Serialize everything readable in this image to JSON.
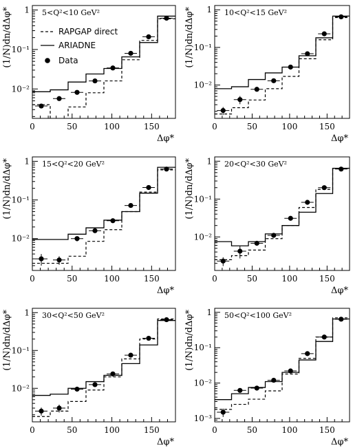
{
  "chart_data": [
    {
      "type": "line",
      "panel_label": "5<Q²<10 GeV²",
      "xlabel": "Δφ*",
      "ylabel": "(1/N)dn/dΔφ*",
      "yscale": "log",
      "xlim": [
        0,
        180
      ],
      "ylim": [
        0.0018,
        1.3
      ],
      "x_ticks": [
        0,
        50,
        100,
        150
      ],
      "y_ticks": [
        {
          "value": 0.01,
          "label": "10⁻²"
        },
        {
          "value": 0.1,
          "label": "10⁻¹"
        },
        {
          "value": 1,
          "label": "1"
        }
      ],
      "bin_edges": [
        0,
        22.5,
        45,
        67.5,
        90,
        112.5,
        135,
        157.5,
        180
      ],
      "legend": {
        "position": "top-left",
        "entries": [
          {
            "series": "rapgap",
            "label": "RAPGAP direct"
          },
          {
            "series": "ariadne",
            "label": "ARIADNE"
          },
          {
            "series": "data",
            "label": "Data"
          }
        ]
      },
      "series": [
        {
          "id": "rapgap",
          "style": "dashed-histogram",
          "values": [
            0.004,
            0.0015,
            0.0035,
            0.008,
            0.016,
            0.055,
            0.17,
            0.6
          ]
        },
        {
          "id": "ariadne",
          "style": "solid-histogram",
          "values": [
            0.0085,
            0.0095,
            0.015,
            0.024,
            0.033,
            0.065,
            0.15,
            0.7
          ]
        },
        {
          "id": "data",
          "style": "points",
          "x": [
            11.25,
            33.75,
            56.25,
            78.75,
            101.25,
            123.75,
            146.25,
            168.75
          ],
          "y": [
            0.0037,
            0.0057,
            0.0082,
            0.016,
            0.034,
            0.08,
            0.21,
            0.62
          ],
          "err": [
            0.0004,
            0.0005,
            0.0006,
            0.001,
            0.002,
            0.004,
            0.01,
            0.03
          ]
        }
      ]
    },
    {
      "type": "line",
      "panel_label": "10<Q²<15 GeV²",
      "xlabel": "Δφ*",
      "ylabel": "(1/N)dn/dΔφ*",
      "yscale": "log",
      "xlim": [
        0,
        180
      ],
      "ylim": [
        0.0013,
        1.3
      ],
      "x_ticks": [
        0,
        50,
        100,
        150
      ],
      "y_ticks": [
        {
          "value": 0.01,
          "label": "10⁻²"
        },
        {
          "value": 0.1,
          "label": "10⁻¹"
        },
        {
          "value": 1,
          "label": "1"
        }
      ],
      "bin_edges": [
        0,
        22.5,
        45,
        67.5,
        90,
        112.5,
        135,
        157.5,
        180
      ],
      "series": [
        {
          "id": "rapgap",
          "style": "dashed-histogram",
          "values": [
            0.0017,
            0.0025,
            0.004,
            0.008,
            0.017,
            0.05,
            0.16,
            0.62
          ]
        },
        {
          "id": "ariadne",
          "style": "solid-histogram",
          "values": [
            0.008,
            0.009,
            0.014,
            0.021,
            0.03,
            0.06,
            0.18,
            0.68
          ]
        },
        {
          "id": "data",
          "style": "points",
          "x": [
            11.25,
            33.75,
            56.25,
            78.75,
            101.25,
            123.75,
            146.25,
            168.75
          ],
          "y": [
            0.0021,
            0.0041,
            0.0077,
            0.013,
            0.03,
            0.068,
            0.23,
            0.65
          ],
          "err": [
            0.0005,
            0.001,
            0.0006,
            0.001,
            0.002,
            0.004,
            0.01,
            0.03
          ]
        }
      ]
    },
    {
      "type": "line",
      "panel_label": "15<Q²<20 GeV²",
      "xlabel": "Δφ*",
      "ylabel": "(1/N)dn/dΔφ*",
      "yscale": "log",
      "xlim": [
        0,
        180
      ],
      "ylim": [
        0.0015,
        1.3
      ],
      "x_ticks": [
        0,
        50,
        100,
        150
      ],
      "y_ticks": [
        {
          "value": 0.01,
          "label": "10⁻²"
        },
        {
          "value": 0.1,
          "label": "10⁻¹"
        },
        {
          "value": 1,
          "label": "1"
        }
      ],
      "bin_edges": [
        0,
        22.5,
        45,
        67.5,
        90,
        112.5,
        135,
        157.5,
        180
      ],
      "series": [
        {
          "id": "rapgap",
          "style": "dashed-histogram",
          "values": [
            0.0023,
            0.0023,
            0.0035,
            0.0085,
            0.017,
            0.05,
            0.16,
            0.6
          ]
        },
        {
          "id": "ariadne",
          "style": "solid-histogram",
          "values": [
            0.0095,
            0.0095,
            0.013,
            0.019,
            0.03,
            0.05,
            0.15,
            0.7
          ]
        },
        {
          "id": "data",
          "style": "points",
          "x": [
            11.25,
            33.75,
            56.25,
            78.75,
            101.25,
            123.75,
            146.25,
            168.75
          ],
          "y": [
            0.003,
            0.0028,
            0.01,
            0.016,
            0.029,
            0.072,
            0.21,
            0.63
          ],
          "err": [
            0.001,
            0.0007,
            0.0015,
            0.0015,
            0.002,
            0.005,
            0.012,
            0.03
          ]
        }
      ]
    },
    {
      "type": "line",
      "panel_label": "20<Q²<30 GeV²",
      "xlabel": "Δφ*",
      "ylabel": "(1/N)dn/dΔφ*",
      "yscale": "log",
      "xlim": [
        0,
        180
      ],
      "ylim": [
        0.0013,
        1.3
      ],
      "x_ticks": [
        0,
        50,
        100,
        150
      ],
      "y_ticks": [
        {
          "value": 0.01,
          "label": "10⁻²"
        },
        {
          "value": 0.1,
          "label": "10⁻¹"
        },
        {
          "value": 1,
          "label": "1"
        }
      ],
      "bin_edges": [
        0,
        22.5,
        45,
        67.5,
        90,
        112.5,
        135,
        157.5,
        180
      ],
      "series": [
        {
          "id": "rapgap",
          "style": "dashed-histogram",
          "values": [
            0.0025,
            0.0032,
            0.0045,
            0.009,
            0.02,
            0.06,
            0.18,
            0.64
          ]
        },
        {
          "id": "ariadne",
          "style": "solid-histogram",
          "values": [
            0.0075,
            0.0058,
            0.0075,
            0.012,
            0.02,
            0.045,
            0.14,
            0.65
          ]
        },
        {
          "id": "data",
          "style": "points",
          "x": [
            11.25,
            33.75,
            56.25,
            78.75,
            101.25,
            123.75,
            146.25,
            168.75
          ],
          "y": [
            0.0023,
            0.0042,
            0.0068,
            0.011,
            0.031,
            0.082,
            0.2,
            0.62
          ],
          "err": [
            0.0006,
            0.0015,
            0.0006,
            0.001,
            0.002,
            0.005,
            0.01,
            0.03
          ]
        }
      ]
    },
    {
      "type": "line",
      "panel_label": "30<Q²<50 GeV²",
      "xlabel": "Δφ*",
      "ylabel": "(1/N)dn/dΔφ*",
      "yscale": "log",
      "xlim": [
        0,
        180
      ],
      "ylim": [
        0.0013,
        1.3
      ],
      "x_ticks": [
        0,
        50,
        100,
        150
      ],
      "y_ticks": [
        {
          "value": 0.01,
          "label": "10⁻²"
        },
        {
          "value": 0.1,
          "label": "10⁻¹"
        },
        {
          "value": 1,
          "label": "1"
        }
      ],
      "bin_edges": [
        0,
        22.5,
        45,
        67.5,
        90,
        112.5,
        135,
        157.5,
        180
      ],
      "series": [
        {
          "id": "rapgap",
          "style": "dashed-histogram",
          "values": [
            0.0018,
            0.0025,
            0.0045,
            0.009,
            0.02,
            0.06,
            0.2,
            0.68
          ]
        },
        {
          "id": "ariadne",
          "style": "solid-histogram",
          "values": [
            0.0065,
            0.007,
            0.01,
            0.015,
            0.022,
            0.045,
            0.14,
            0.62
          ]
        },
        {
          "id": "data",
          "style": "points",
          "x": [
            11.25,
            33.75,
            56.25,
            78.75,
            101.25,
            123.75,
            146.25,
            168.75
          ],
          "y": [
            0.0025,
            0.003,
            0.0095,
            0.0125,
            0.024,
            0.075,
            0.21,
            0.65
          ],
          "err": [
            0.0006,
            0.0007,
            0.0008,
            0.001,
            0.002,
            0.005,
            0.01,
            0.03
          ]
        }
      ]
    },
    {
      "type": "line",
      "panel_label": "50<Q²<100 GeV²",
      "xlabel": "Δφ*",
      "ylabel": "(1/N)dn/dΔφ*",
      "yscale": "log",
      "xlim": [
        0,
        180
      ],
      "ylim": [
        0.0008,
        1.3
      ],
      "x_ticks": [
        0,
        50,
        100,
        150
      ],
      "y_ticks": [
        {
          "value": 0.001,
          "label": "10⁻³"
        },
        {
          "value": 0.01,
          "label": "10⁻²"
        },
        {
          "value": 0.1,
          "label": "10⁻¹"
        },
        {
          "value": 1,
          "label": "1"
        }
      ],
      "bin_edges": [
        0,
        22.5,
        45,
        67.5,
        90,
        112.5,
        135,
        157.5,
        180
      ],
      "series": [
        {
          "id": "rapgap",
          "style": "dashed-histogram",
          "values": [
            0.0018,
            0.0025,
            0.0035,
            0.006,
            0.018,
            0.05,
            0.2,
            0.7
          ]
        },
        {
          "id": "ariadne",
          "style": "solid-histogram",
          "values": [
            0.0034,
            0.005,
            0.0075,
            0.011,
            0.02,
            0.045,
            0.15,
            0.65
          ]
        },
        {
          "id": "data",
          "style": "points",
          "x": [
            11.25,
            33.75,
            56.25,
            78.75,
            101.25,
            123.75,
            146.25,
            168.75
          ],
          "y": [
            0.0015,
            0.0062,
            0.0072,
            0.012,
            0.022,
            0.068,
            0.2,
            0.64
          ],
          "err": [
            0.0004,
            0.0008,
            0.0008,
            0.001,
            0.002,
            0.005,
            0.01,
            0.03
          ]
        }
      ]
    }
  ]
}
